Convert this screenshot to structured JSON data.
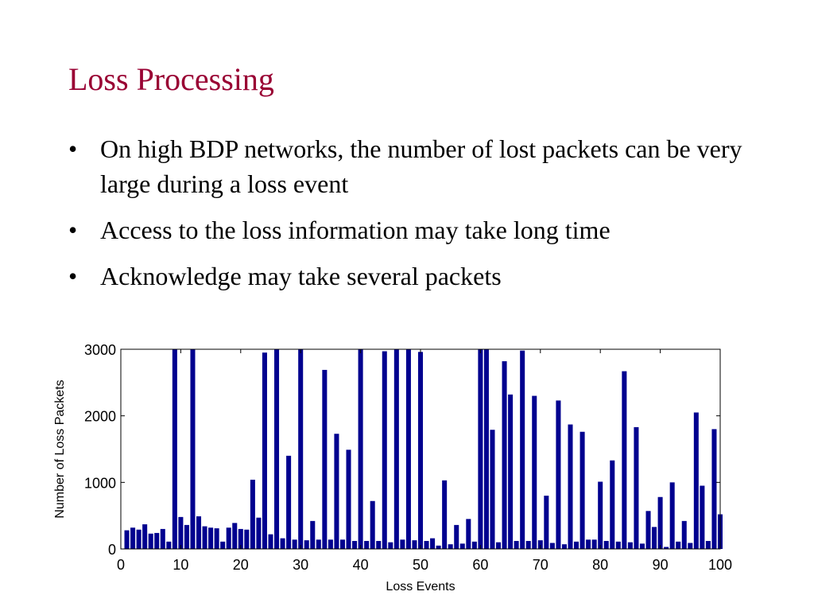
{
  "slide": {
    "title": "Loss Processing",
    "bullets": [
      "On high BDP networks, the number of lost packets can be very large during a loss event",
      "Access to the loss information may take long time",
      "Acknowledge may take several packets"
    ],
    "bullet_symbol": "•"
  },
  "colors": {
    "title": "#990033",
    "bar": "#00008F"
  },
  "chart_data": {
    "type": "bar",
    "title": "",
    "xlabel": "Loss Events",
    "ylabel": "Number of Loss Packets",
    "xlim": [
      0,
      100
    ],
    "ylim": [
      0,
      3000
    ],
    "xticks": [
      0,
      10,
      20,
      30,
      40,
      50,
      60,
      70,
      80,
      90,
      100
    ],
    "yticks": [
      0,
      1000,
      2000,
      3000
    ],
    "grid": false,
    "x": [
      1,
      2,
      3,
      4,
      5,
      6,
      7,
      8,
      9,
      10,
      11,
      12,
      13,
      14,
      15,
      16,
      17,
      18,
      19,
      20,
      21,
      22,
      23,
      24,
      25,
      26,
      27,
      28,
      29,
      30,
      31,
      32,
      33,
      34,
      35,
      36,
      37,
      38,
      39,
      40,
      41,
      42,
      43,
      44,
      45,
      46,
      47,
      48,
      49,
      50,
      51,
      52,
      53,
      54,
      55,
      56,
      57,
      58,
      59,
      60,
      61,
      62,
      63,
      64,
      65,
      66,
      67,
      68,
      69,
      70,
      71,
      72,
      73,
      74,
      75,
      76,
      77,
      78,
      79,
      80,
      81,
      82,
      83,
      84,
      85,
      86,
      87,
      88,
      89,
      90,
      91,
      92,
      93,
      94,
      95,
      96,
      97,
      98,
      99,
      100
    ],
    "values": [
      280,
      320,
      290,
      370,
      230,
      240,
      300,
      110,
      3000,
      480,
      360,
      3000,
      490,
      340,
      320,
      310,
      110,
      320,
      390,
      300,
      290,
      1040,
      470,
      2950,
      220,
      3000,
      160,
      1400,
      140,
      3000,
      130,
      420,
      140,
      2690,
      140,
      1730,
      140,
      1490,
      120,
      3000,
      120,
      720,
      120,
      2970,
      100,
      3000,
      140,
      3000,
      130,
      2960,
      120,
      160,
      50,
      1030,
      70,
      360,
      80,
      450,
      110,
      3000,
      3000,
      1790,
      100,
      2820,
      2320,
      120,
      2980,
      120,
      2300,
      130,
      800,
      90,
      2230,
      70,
      1870,
      110,
      1760,
      140,
      140,
      1010,
      120,
      1330,
      110,
      2670,
      100,
      1830,
      80,
      570,
      330,
      780,
      30,
      1000,
      110,
      420,
      90,
      2050,
      950,
      120,
      1800,
      520
    ]
  }
}
